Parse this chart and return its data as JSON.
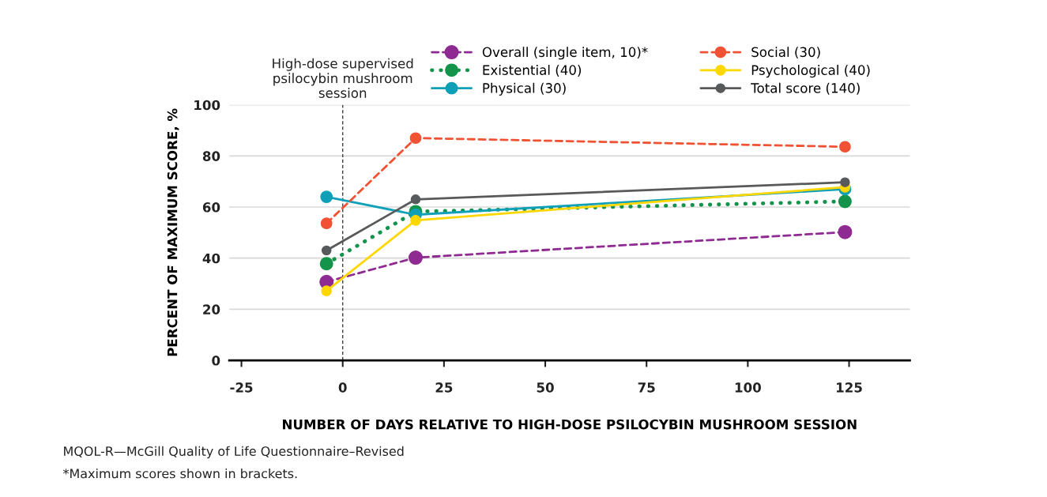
{
  "chart_data": {
    "type": "line",
    "xlabel": "NUMBER OF DAYS RELATIVE TO HIGH-DOSE PSILOCYBIN MUSHROOM SESSION",
    "ylabel": "PERCENT OF MAXIMUM SCORE, %",
    "x": [
      -4,
      18,
      124
    ],
    "series": [
      {
        "name": "Overall (single item, 10)*",
        "color": "#8e2a91",
        "line_style": "dashed",
        "values": [
          30.7,
          40.2,
          50.2
        ]
      },
      {
        "name": "Existential (40)",
        "color": "#13944a",
        "line_style": "dotted",
        "values": [
          37.8,
          58.2,
          62.2
        ]
      },
      {
        "name": "Physical (30)",
        "color": "#0fa0b8",
        "line_style": "solid",
        "values": [
          64,
          57,
          67
        ]
      },
      {
        "name": "Social (30)",
        "color": "#f05233",
        "line_style": "dashed",
        "values": [
          53.6,
          87,
          83.6
        ]
      },
      {
        "name": "Psychological (40)",
        "color": "#ffd700",
        "line_style": "solid",
        "values": [
          27.2,
          54.8,
          67.8
        ]
      },
      {
        "name": "Total score (140)",
        "color": "#58595b",
        "line_style": "solid",
        "values": [
          43,
          63,
          69.7
        ]
      }
    ],
    "marker": "circle",
    "xlim": [
      -28,
      140
    ],
    "xticks": [
      -25,
      0,
      25,
      50,
      75,
      100,
      125
    ],
    "ylim": [
      0,
      100
    ],
    "yticks": [
      0,
      20,
      40,
      60,
      80,
      100
    ],
    "grid": "y",
    "legend": "top right",
    "ref_lines": [
      {
        "axis": "x",
        "value": 0,
        "label": "High-dose supervised\npsilocybin mushroom\nsession",
        "color": "#444444",
        "line_style": "dashed"
      }
    ],
    "annotations": [
      "MQOL-R—McGill Quality of Life Questionnaire–Revised",
      "*Maximum scores shown in brackets."
    ]
  }
}
